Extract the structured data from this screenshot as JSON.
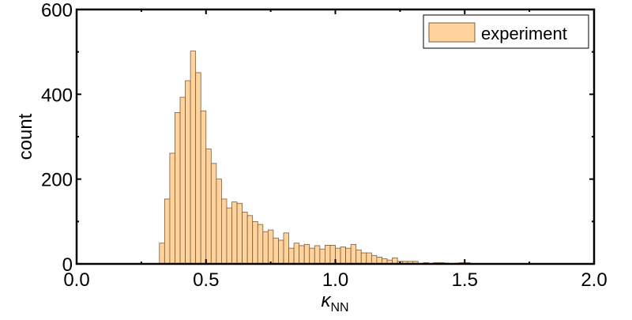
{
  "chart_data": {
    "type": "bar",
    "subtype": "histogram",
    "title": "",
    "xlabel": "κ",
    "xlabel_sub": "NN",
    "ylabel": "count",
    "xlim": [
      0,
      2.0
    ],
    "ylim": [
      0,
      600
    ],
    "x_ticks": [
      "0.0",
      "0.5",
      "1.0",
      "1.5",
      "2.0"
    ],
    "x_tick_values": [
      0,
      0.5,
      1.0,
      1.5,
      2.0
    ],
    "y_ticks": [
      "0",
      "200",
      "400",
      "600"
    ],
    "y_tick_values": [
      0,
      200,
      400,
      600
    ],
    "grid": false,
    "legend_position": "top-right",
    "bin_start": 0.32,
    "bin_width": 0.02,
    "series": [
      {
        "name": "experiment",
        "color": "#FFD39B",
        "edge_color": "#7A5C3A",
        "values": [
          49,
          153,
          261,
          357,
          393,
          432,
          502,
          451,
          361,
          271,
          237,
          200,
          153,
          132,
          146,
          143,
          122,
          114,
          100,
          93,
          76,
          80,
          61,
          56,
          73,
          37,
          49,
          43,
          46,
          37,
          43,
          35,
          44,
          44,
          37,
          40,
          37,
          46,
          33,
          26,
          26,
          20,
          16,
          12,
          9,
          14,
          6,
          6,
          6,
          6,
          0,
          3,
          0,
          3,
          3,
          2,
          0,
          2,
          3,
          3
        ]
      }
    ]
  }
}
